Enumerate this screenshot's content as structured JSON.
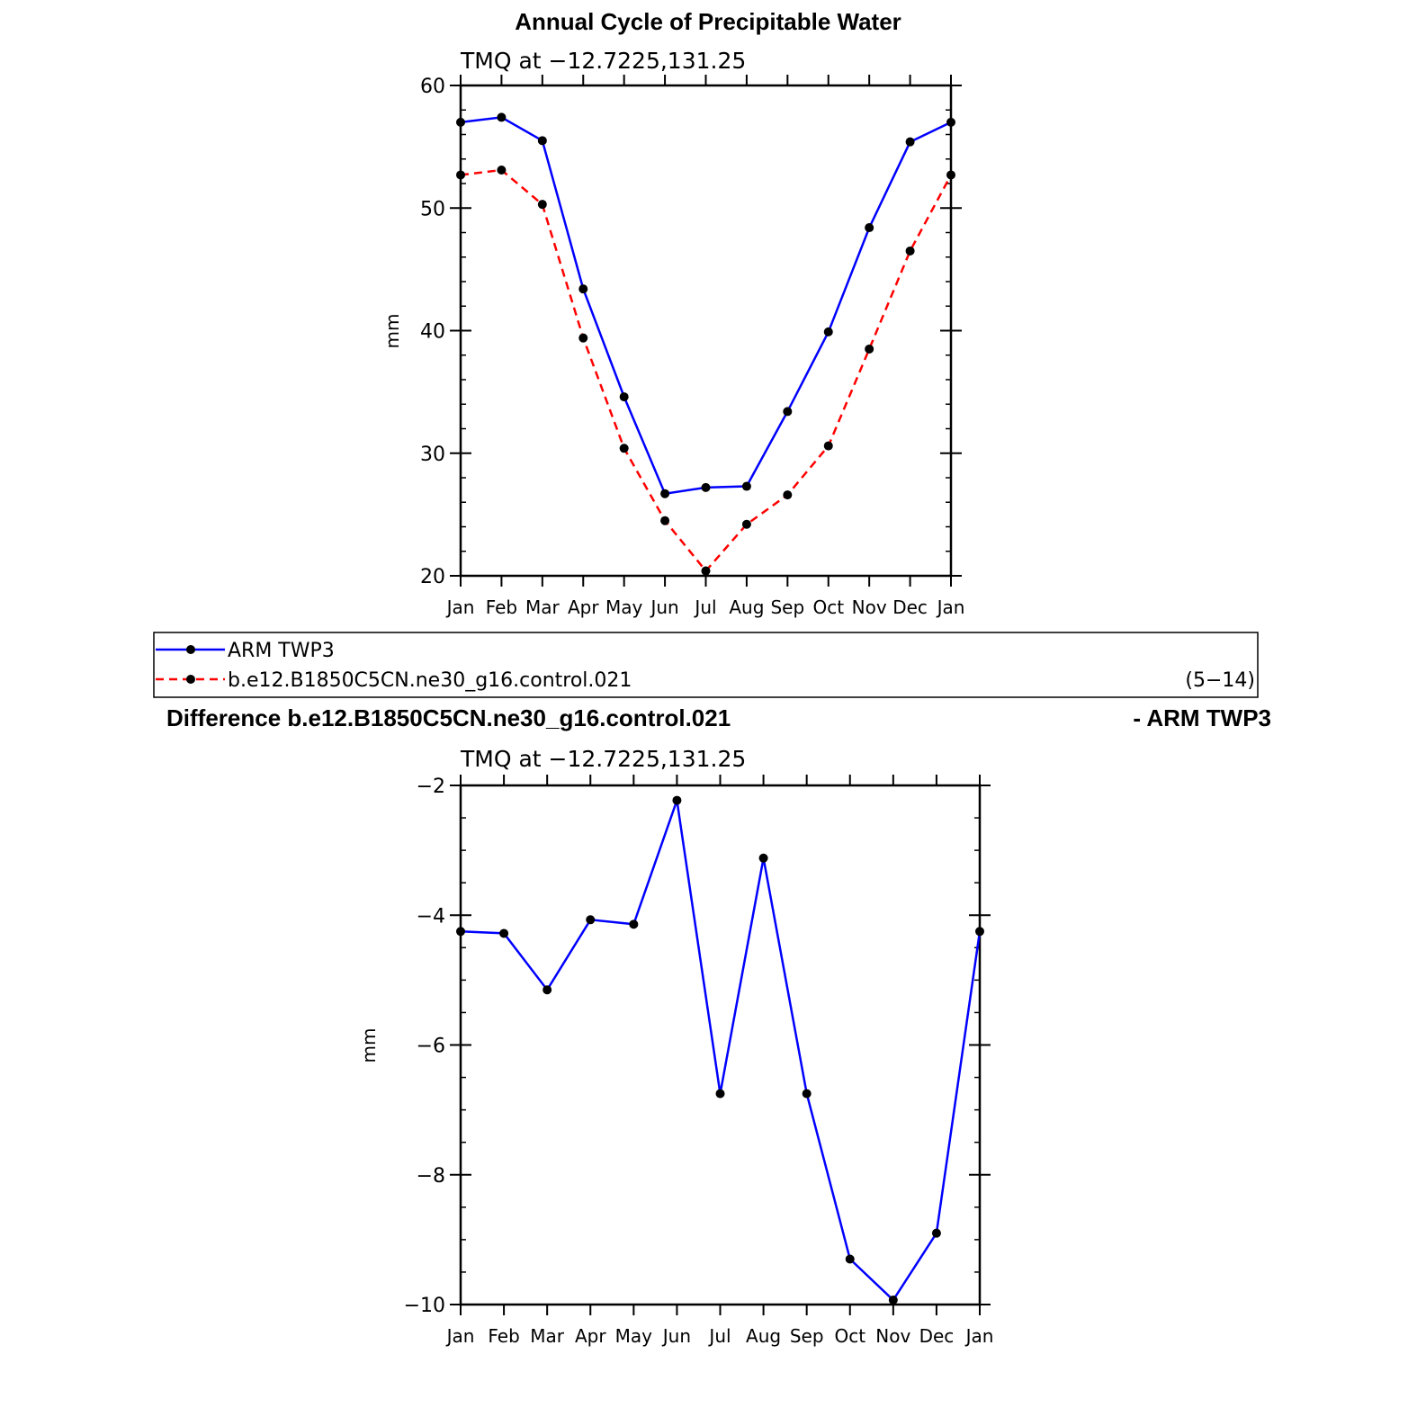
{
  "colors": {
    "series1": "#0000ff",
    "series2": "#ff0000",
    "marker": "#000000"
  },
  "chart_data": [
    {
      "type": "line",
      "title": "Annual Cycle of Precipitable Water",
      "subtitle": "TMQ at −12.7225,131.25",
      "ylabel": "mm",
      "xlabel": "",
      "categories": [
        "Jan",
        "Feb",
        "Mar",
        "Apr",
        "May",
        "Jun",
        "Jul",
        "Aug",
        "Sep",
        "Oct",
        "Nov",
        "Dec",
        "Jan"
      ],
      "ylim": [
        20,
        60
      ],
      "yticks": [
        "60",
        "50",
        "40",
        "30",
        "20"
      ],
      "series": [
        {
          "name": "ARM TWP3",
          "style": "solid",
          "values": [
            57.0,
            57.4,
            55.5,
            43.4,
            34.6,
            26.7,
            27.2,
            27.3,
            33.4,
            39.9,
            48.4,
            55.4,
            57.0
          ]
        },
        {
          "name": "b.e12.B1850C5CN.ne30_g16.control.021",
          "style": "dashed",
          "values": [
            52.7,
            53.1,
            50.3,
            39.4,
            30.4,
            24.5,
            20.4,
            24.2,
            26.6,
            30.6,
            38.5,
            46.5,
            52.7
          ]
        }
      ],
      "legend_note": "(5−14)"
    },
    {
      "type": "line",
      "title_left": "Difference b.e12.B1850C5CN.ne30_g16.control.021",
      "title_right": "- ARM TWP3",
      "subtitle": "TMQ at −12.7225,131.25",
      "ylabel": "mm",
      "xlabel": "",
      "categories": [
        "Jan",
        "Feb",
        "Mar",
        "Apr",
        "May",
        "Jun",
        "Jul",
        "Aug",
        "Sep",
        "Oct",
        "Nov",
        "Dec",
        "Jan"
      ],
      "ylim": [
        -10,
        -2
      ],
      "yticks": [
        "−2",
        "−4",
        "−6",
        "−8",
        "−10"
      ],
      "series": [
        {
          "style": "solid",
          "values": [
            -4.25,
            -4.28,
            -5.15,
            -4.07,
            -4.14,
            -2.23,
            -6.75,
            -3.12,
            -6.75,
            -9.3,
            -9.93,
            -8.9,
            -4.25
          ]
        }
      ]
    }
  ]
}
